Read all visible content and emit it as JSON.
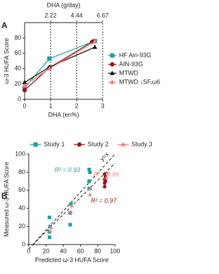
{
  "chart_data": [
    {
      "type": "line",
      "panel": "A",
      "xlabel": "DHA (en%)",
      "ylabel": "ω-3 HUFA Score",
      "x2label": "DHA (g/day)",
      "xlim": [
        0,
        3
      ],
      "xticks": [
        0,
        1,
        2,
        3
      ],
      "ylim": [
        0,
        100
      ],
      "yticks": [
        0,
        20,
        40,
        60,
        80
      ],
      "x2ticks": [
        {
          "value": 1,
          "label": "2.22"
        },
        {
          "value": 2,
          "label": "4.44"
        },
        {
          "value": 3,
          "label": "6.67"
        }
      ],
      "series": [
        {
          "name": "HF Ain-93G",
          "color": "#2a9d9d",
          "marker": "square",
          "x": [
            0,
            0.95,
            2.7
          ],
          "values": [
            15,
            53,
            76
          ]
        },
        {
          "name": "AIN-93G",
          "color": "#8b1a1a",
          "marker": "circle",
          "x": [
            0,
            0.95,
            2.6
          ],
          "values": [
            12,
            41,
            75
          ]
        },
        {
          "name": "MTWD",
          "color": "#111111",
          "marker": "triangle",
          "x": [
            0,
            0.95,
            2.7
          ],
          "values": [
            22,
            42,
            68
          ]
        },
        {
          "name": "MTWD ↓SF,ω6",
          "color": "#f08080",
          "marker": "triangle",
          "x": [
            0,
            0.95,
            2.7
          ],
          "values": [
            18,
            40,
            75
          ]
        }
      ]
    },
    {
      "type": "scatter",
      "panel": "B",
      "xlabel": "Predicted ω-3 HUFA Score",
      "ylabel": "Measured ω-3 HUFA Score",
      "xlim": [
        0,
        100
      ],
      "xticks": [
        0,
        20,
        40,
        60,
        80,
        100
      ],
      "ylim": [
        0,
        100
      ],
      "yticks": [
        0,
        20,
        40,
        60,
        80,
        100
      ],
      "identity_label": "y=x",
      "series": [
        {
          "name": "Study 1",
          "color": "#2a9d9d",
          "marker": "square",
          "x": [
            24,
            24,
            24,
            25,
            48,
            48,
            49,
            70,
            70,
            71,
            70
          ],
          "values": [
            8,
            14,
            30,
            20,
            22,
            35,
            45,
            62,
            70,
            80,
            83
          ]
        },
        {
          "name": "Study 2",
          "color": "#8b1a1a",
          "marker": "circle",
          "x": [
            88,
            88,
            89,
            88,
            89,
            88
          ],
          "values": [
            64,
            68,
            70,
            72,
            75,
            78
          ]
        },
        {
          "name": "Study 3",
          "color": "#f08080",
          "marker": "triangle",
          "x": [
            25,
            26,
            49,
            50,
            71,
            72,
            90,
            91
          ],
          "values": [
            15,
            19,
            36,
            43,
            55,
            62,
            74,
            79
          ]
        }
      ],
      "annotations": [
        {
          "text": "R² = 0.93",
          "color": "#2a9d9d"
        },
        {
          "text": "R² = 0.99",
          "color": "#f08080"
        },
        {
          "text": "R² = 0.97",
          "color": "#8b1a1a"
        }
      ]
    }
  ]
}
